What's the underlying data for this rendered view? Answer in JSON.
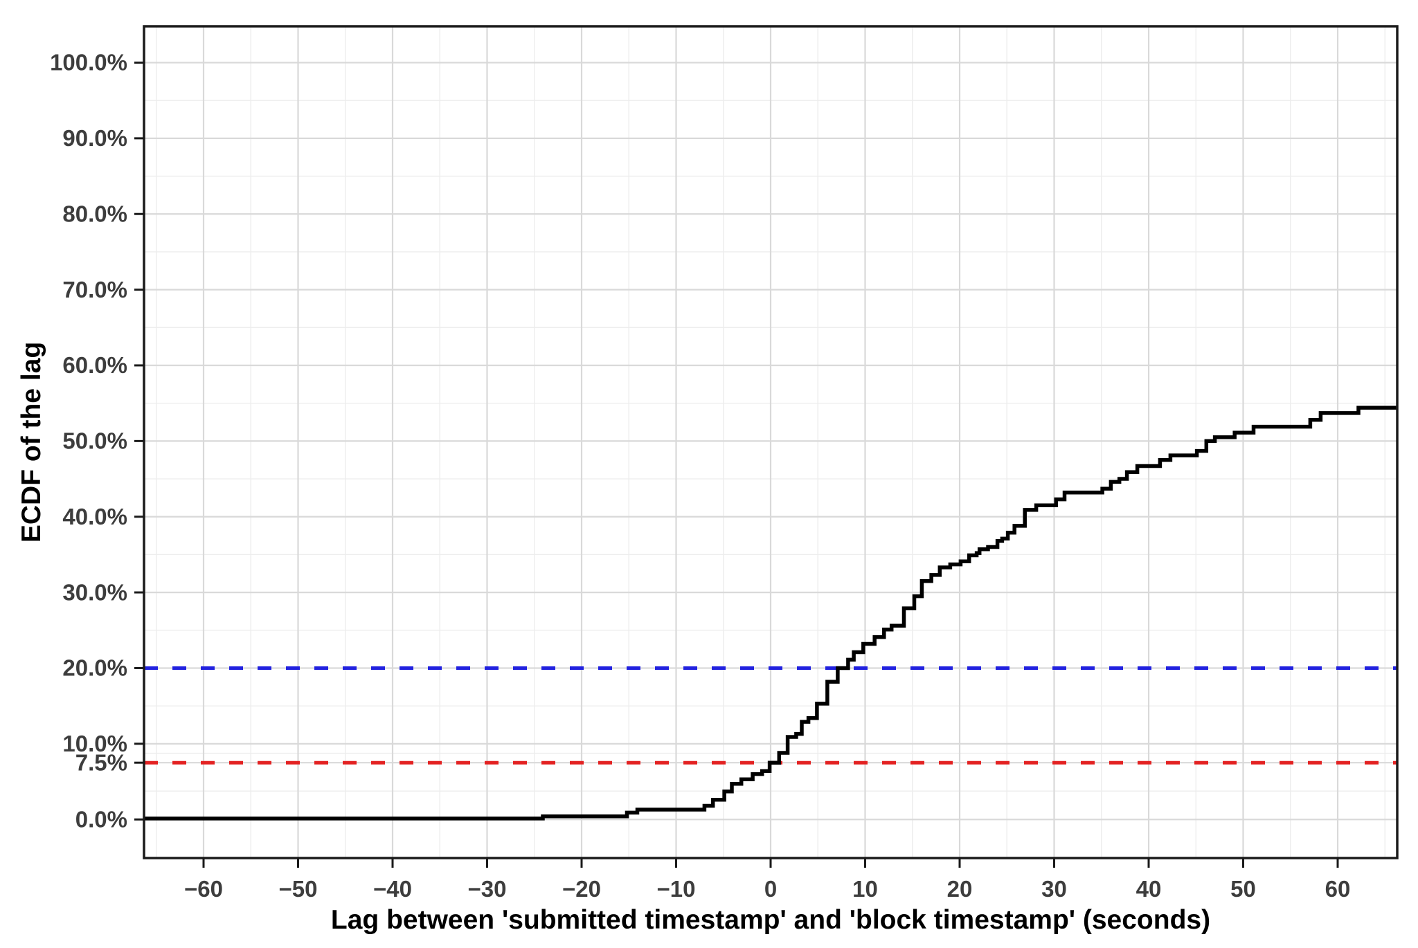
{
  "chart_data": {
    "type": "line",
    "variant": "ecdf-step",
    "title": "",
    "xlabel": "Lag between 'submitted timestamp' and 'block timestamp' (seconds)",
    "ylabel": "ECDF of the lag",
    "xlim": [
      -66.3,
      66.3
    ],
    "ylim": [
      -5.1,
      104.8
    ],
    "background": "#FFFFFF",
    "legend_position": "none",
    "x_ticks": [
      {
        "v": -60,
        "label": "−60"
      },
      {
        "v": -50,
        "label": "−50"
      },
      {
        "v": -40,
        "label": "−40"
      },
      {
        "v": -30,
        "label": "−30"
      },
      {
        "v": -20,
        "label": "−20"
      },
      {
        "v": -10,
        "label": "−10"
      },
      {
        "v": 0,
        "label": "0"
      },
      {
        "v": 10,
        "label": "10"
      },
      {
        "v": 20,
        "label": "20"
      },
      {
        "v": 30,
        "label": "30"
      },
      {
        "v": 40,
        "label": "40"
      },
      {
        "v": 50,
        "label": "50"
      },
      {
        "v": 60,
        "label": "60"
      }
    ],
    "y_ticks": [
      {
        "v": 0,
        "label": "0.0%"
      },
      {
        "v": 7.5,
        "label": "7.5%"
      },
      {
        "v": 10,
        "label": "10.0%"
      },
      {
        "v": 20,
        "label": "20.0%"
      },
      {
        "v": 30,
        "label": "30.0%"
      },
      {
        "v": 40,
        "label": "40.0%"
      },
      {
        "v": 50,
        "label": "50.0%"
      },
      {
        "v": 60,
        "label": "60.0%"
      },
      {
        "v": 70,
        "label": "70.0%"
      },
      {
        "v": 80,
        "label": "80.0%"
      },
      {
        "v": 90,
        "label": "90.0%"
      },
      {
        "v": 100,
        "label": "100.0%"
      }
    ],
    "grid": {
      "x_major": [
        -60,
        -50,
        -40,
        -30,
        -20,
        -10,
        0,
        10,
        20,
        30,
        40,
        50,
        60
      ],
      "x_minor": [
        -65,
        -55,
        -45,
        -35,
        -25,
        -15,
        -5,
        5,
        15,
        25,
        35,
        45,
        55,
        65
      ],
      "y_major": [
        0,
        7.5,
        10,
        20,
        30,
        40,
        50,
        60,
        70,
        80,
        90,
        100
      ],
      "y_minor": [
        3.75,
        8.75,
        15,
        25,
        35,
        45,
        55,
        65,
        75,
        85,
        95
      ],
      "major_color": "#D9D9D9",
      "minor_color": "#EDEDED"
    },
    "axis_style": {
      "border_color": "#1A1A1A",
      "tick_color": "#1A1A1A",
      "tick_label_color": "#3D3D3D",
      "title_color": "#000000"
    },
    "series": [
      {
        "name": "ecdf-of-lag",
        "type": "step",
        "color": "#000000",
        "points": [
          [
            -66.3,
            0.12
          ],
          [
            -24.1,
            0.4
          ],
          [
            -15.2,
            0.9
          ],
          [
            -14.1,
            1.3
          ],
          [
            -7.0,
            1.8
          ],
          [
            -6.1,
            2.6
          ],
          [
            -4.9,
            3.7
          ],
          [
            -4.1,
            4.7
          ],
          [
            -3.1,
            5.3
          ],
          [
            -1.9,
            6.0
          ],
          [
            -0.9,
            6.4
          ],
          [
            -0.1,
            7.5
          ],
          [
            0.9,
            8.8
          ],
          [
            1.8,
            10.9
          ],
          [
            2.7,
            11.3
          ],
          [
            3.3,
            12.9
          ],
          [
            4.0,
            13.4
          ],
          [
            4.9,
            15.3
          ],
          [
            6.0,
            18.2
          ],
          [
            7.1,
            20.0
          ],
          [
            8.2,
            21.1
          ],
          [
            8.8,
            22.1
          ],
          [
            9.8,
            23.2
          ],
          [
            11.0,
            24.1
          ],
          [
            12.0,
            25.1
          ],
          [
            12.8,
            25.6
          ],
          [
            14.1,
            27.9
          ],
          [
            15.2,
            29.5
          ],
          [
            16.0,
            31.5
          ],
          [
            17.0,
            32.3
          ],
          [
            17.9,
            33.3
          ],
          [
            19.0,
            33.7
          ],
          [
            20.1,
            34.1
          ],
          [
            21.0,
            34.9
          ],
          [
            21.8,
            35.2
          ],
          [
            22.1,
            35.7
          ],
          [
            23.0,
            36.0
          ],
          [
            24.0,
            36.8
          ],
          [
            24.5,
            37.1
          ],
          [
            25.1,
            37.9
          ],
          [
            25.8,
            38.8
          ],
          [
            26.9,
            40.9
          ],
          [
            28.1,
            41.5
          ],
          [
            30.2,
            42.3
          ],
          [
            31.1,
            43.2
          ],
          [
            35.1,
            43.7
          ],
          [
            36.0,
            44.6
          ],
          [
            36.9,
            45.0
          ],
          [
            37.7,
            45.9
          ],
          [
            38.8,
            46.7
          ],
          [
            41.2,
            47.5
          ],
          [
            42.3,
            48.1
          ],
          [
            45.1,
            48.7
          ],
          [
            46.1,
            50.0
          ],
          [
            47.0,
            50.5
          ],
          [
            49.1,
            51.1
          ],
          [
            51.1,
            51.9
          ],
          [
            57.1,
            52.8
          ],
          [
            58.2,
            53.7
          ],
          [
            62.2,
            54.4
          ],
          [
            66.3,
            54.4
          ]
        ]
      },
      {
        "name": "reference-line-20-percent",
        "type": "hline",
        "y": 20,
        "color": "#2121DF",
        "dash": [
          20,
          21
        ],
        "width": 5
      },
      {
        "name": "reference-line-7-5-percent",
        "type": "hline",
        "y": 7.5,
        "color": "#E32222",
        "dash": [
          20,
          21
        ],
        "width": 5
      }
    ]
  }
}
